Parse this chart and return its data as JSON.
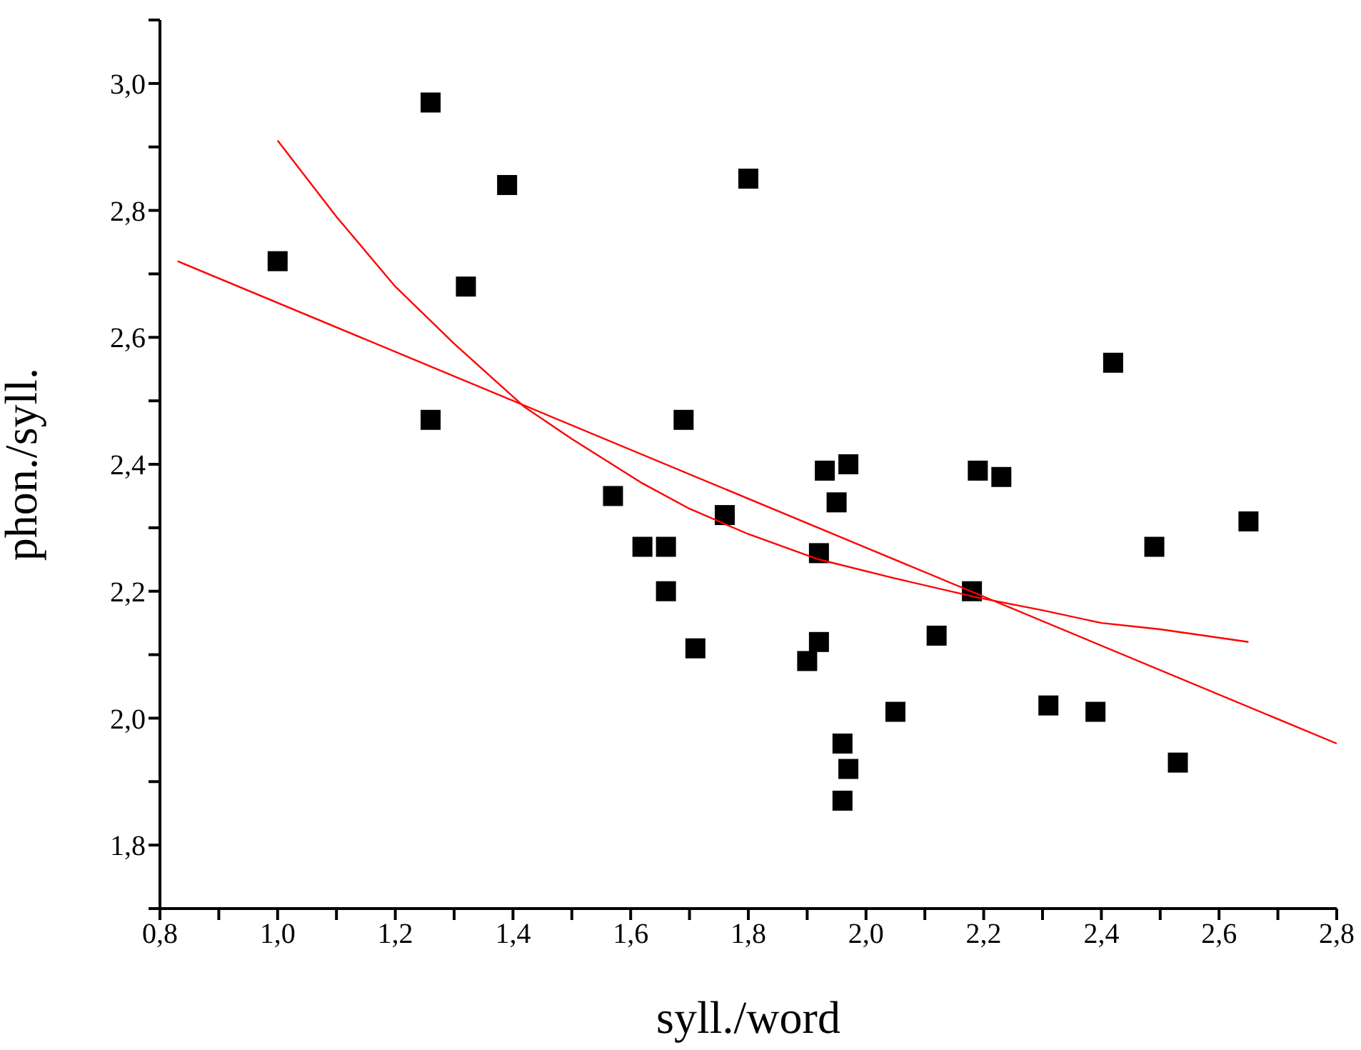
{
  "chart_data": {
    "type": "scatter",
    "xlabel": "syll./word",
    "ylabel": "phon./syll.",
    "xlim": [
      0.8,
      2.8
    ],
    "ylim": [
      1.7,
      3.1
    ],
    "xticks": [
      {
        "value": 0.8,
        "label": "0,8"
      },
      {
        "value": 0.9,
        "label": null
      },
      {
        "value": 1.0,
        "label": "1,0"
      },
      {
        "value": 1.1,
        "label": null
      },
      {
        "value": 1.2,
        "label": "1,2"
      },
      {
        "value": 1.3,
        "label": null
      },
      {
        "value": 1.4,
        "label": "1,4"
      },
      {
        "value": 1.5,
        "label": null
      },
      {
        "value": 1.6,
        "label": "1,6"
      },
      {
        "value": 1.7,
        "label": null
      },
      {
        "value": 1.8,
        "label": "1,8"
      },
      {
        "value": 1.9,
        "label": null
      },
      {
        "value": 2.0,
        "label": "2,0"
      },
      {
        "value": 2.1,
        "label": null
      },
      {
        "value": 2.2,
        "label": "2,2"
      },
      {
        "value": 2.3,
        "label": null
      },
      {
        "value": 2.4,
        "label": "2,4"
      },
      {
        "value": 2.5,
        "label": null
      },
      {
        "value": 2.6,
        "label": "2,6"
      },
      {
        "value": 2.7,
        "label": null
      },
      {
        "value": 2.8,
        "label": "2,8"
      }
    ],
    "yticks": [
      {
        "value": 1.7,
        "label": null
      },
      {
        "value": 1.8,
        "label": "1,8"
      },
      {
        "value": 1.9,
        "label": null
      },
      {
        "value": 2.0,
        "label": "2,0"
      },
      {
        "value": 2.1,
        "label": null
      },
      {
        "value": 2.2,
        "label": "2,2"
      },
      {
        "value": 2.3,
        "label": null
      },
      {
        "value": 2.4,
        "label": "2,4"
      },
      {
        "value": 2.5,
        "label": null
      },
      {
        "value": 2.6,
        "label": "2,6"
      },
      {
        "value": 2.7,
        "label": null
      },
      {
        "value": 2.8,
        "label": "2,8"
      },
      {
        "value": 2.9,
        "label": null
      },
      {
        "value": 3.0,
        "label": "3,0"
      },
      {
        "value": 3.1,
        "label": null
      }
    ],
    "series": [
      {
        "color": "#000000",
        "marker": "square",
        "x": [
          1.0,
          1.26,
          1.39,
          1.32,
          1.26,
          1.57,
          1.62,
          1.66,
          1.66,
          1.69,
          1.71,
          1.76,
          1.8,
          1.9,
          1.92,
          1.92,
          1.93,
          1.95,
          1.97,
          1.96,
          1.97,
          1.96,
          2.05,
          2.12,
          2.18,
          2.19,
          2.23,
          2.31,
          2.39,
          2.42,
          2.49,
          2.53,
          2.65
        ],
        "values": [
          2.72,
          2.97,
          2.84,
          2.68,
          2.47,
          2.35,
          2.27,
          2.27,
          2.2,
          2.47,
          2.11,
          2.32,
          2.85,
          2.09,
          2.26,
          2.12,
          2.39,
          2.34,
          2.4,
          1.96,
          1.92,
          1.87,
          2.01,
          2.13,
          2.2,
          2.39,
          2.38,
          2.02,
          2.01,
          2.56,
          2.27,
          1.93,
          2.31
        ]
      },
      {
        "type": "line",
        "color": "#ff0000",
        "marker": "none",
        "x": [
          0.83,
          2.8
        ],
        "values": [
          2.72,
          1.96
        ]
      },
      {
        "type": "line",
        "color": "#ff0000",
        "marker": "none",
        "x": [
          1.0,
          1.1,
          1.2,
          1.3,
          1.42,
          1.5,
          1.62,
          1.7,
          1.8,
          1.92,
          2.05,
          2.19,
          2.3,
          2.4,
          2.5,
          2.65
        ],
        "values": [
          2.91,
          2.79,
          2.68,
          2.59,
          2.49,
          2.44,
          2.37,
          2.33,
          2.29,
          2.25,
          2.22,
          2.19,
          2.17,
          2.15,
          2.14,
          2.12
        ]
      }
    ]
  }
}
